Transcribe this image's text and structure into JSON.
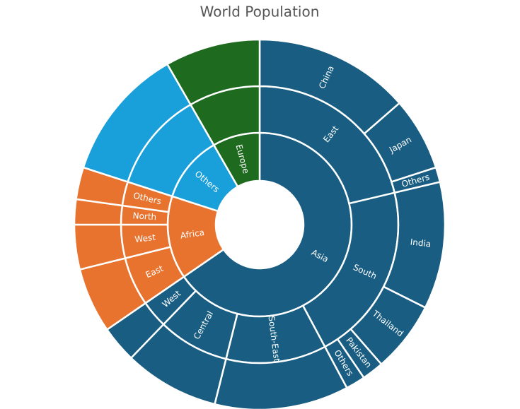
{
  "chart_data": {
    "type": "sunburst",
    "title": "World Population",
    "nodes": [
      {
        "name": "Asia",
        "color": "#195e82",
        "children": [
          {
            "name": "East",
            "children": [
              {
                "name": "China",
                "value": 13.6
              },
              {
                "name": "Japan",
                "value": 6.4
              },
              {
                "name": "Others",
                "value": 1.3
              }
            ]
          },
          {
            "name": "South",
            "children": [
              {
                "name": "India",
                "value": 11.1
              },
              {
                "name": "Thailand",
                "value": 6.2
              },
              {
                "name": "Pakistan",
                "value": 1.9
              },
              {
                "name": "Others",
                "value": 1.7
              }
            ]
          },
          {
            "name": "South-East",
            "children": [
              {
                "name": null,
                "value": 11.7
              }
            ]
          },
          {
            "name": "Central",
            "children": [
              {
                "name": null,
                "value": 8.3
              }
            ]
          },
          {
            "name": "West",
            "children": [
              {
                "name": null,
                "value": 3.2
              }
            ]
          }
        ]
      },
      {
        "name": "Africa",
        "color": "#e8732f",
        "children": [
          {
            "name": "East",
            "children": [
              {
                "name": null,
                "value": 5.7
              }
            ]
          },
          {
            "name": "West",
            "children": [
              {
                "name": null,
                "value": 3.9
              }
            ]
          },
          {
            "name": "North",
            "children": [
              {
                "name": null,
                "value": 2.2
              }
            ]
          },
          {
            "name": "Others",
            "children": [
              {
                "name": null,
                "value": 2.8
              }
            ]
          }
        ]
      },
      {
        "name": "Others",
        "color": "#199fd9",
        "children": [
          {
            "name": null,
            "children": [
              {
                "name": null,
                "value": 11.7
              }
            ]
          }
        ]
      },
      {
        "name": "Europe",
        "color": "#1e6b1f",
        "children": [
          {
            "name": null,
            "children": [
              {
                "name": null,
                "value": 8.3
              }
            ]
          }
        ]
      }
    ]
  }
}
